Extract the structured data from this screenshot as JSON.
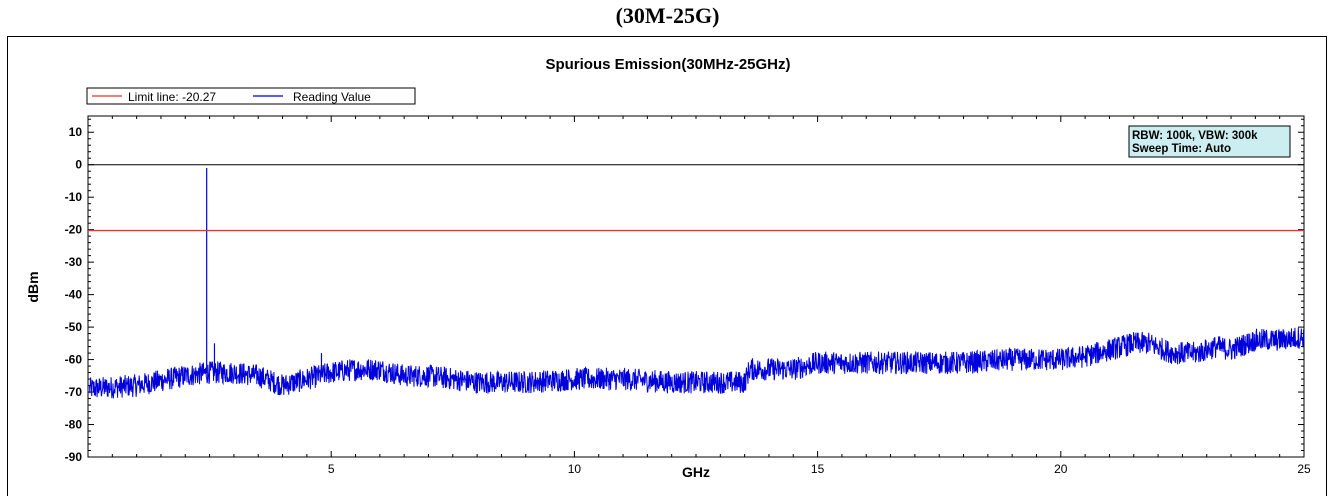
{
  "heading": "(30M-25G)",
  "chart_data": {
    "type": "line",
    "title": "Spurious Emission(30MHz-25GHz)",
    "xlabel": "GHz",
    "ylabel": "dBm",
    "xlim": [
      0.03,
      25
    ],
    "ylim": [
      -90,
      15
    ],
    "x_ticks": [
      5,
      10,
      15,
      20,
      25
    ],
    "y_ticks": [
      10,
      0,
      -10,
      -20,
      -30,
      -40,
      -50,
      -60,
      -70,
      -80,
      -90
    ],
    "reference_line": 0,
    "limit_line": {
      "name": "Limit line: -20.27",
      "value": -20.27,
      "color": "#e8322f"
    },
    "reading": {
      "name": "Reading Value",
      "color": "#0000dd",
      "noise_floor": [
        [
          0.03,
          -69
        ],
        [
          1,
          -68
        ],
        [
          2,
          -65
        ],
        [
          2.5,
          -64
        ],
        [
          3,
          -64
        ],
        [
          3.5,
          -65
        ],
        [
          4,
          -68
        ],
        [
          4.5,
          -66
        ],
        [
          5,
          -64
        ],
        [
          5.5,
          -63
        ],
        [
          6,
          -63
        ],
        [
          6.5,
          -65
        ],
        [
          7,
          -65
        ],
        [
          8,
          -67
        ],
        [
          9,
          -67
        ],
        [
          10,
          -66
        ],
        [
          11,
          -66
        ],
        [
          12,
          -67
        ],
        [
          13,
          -67
        ],
        [
          13.5,
          -67
        ],
        [
          13.6,
          -63
        ],
        [
          14,
          -63
        ],
        [
          14.5,
          -63
        ],
        [
          15,
          -61
        ],
        [
          16,
          -61
        ],
        [
          17,
          -61
        ],
        [
          18,
          -61
        ],
        [
          19,
          -60
        ],
        [
          20,
          -60
        ],
        [
          20.5,
          -59
        ],
        [
          21,
          -57
        ],
        [
          21.5,
          -55
        ],
        [
          21.8,
          -55
        ],
        [
          22.3,
          -58
        ],
        [
          22.8,
          -58
        ],
        [
          23.2,
          -56
        ],
        [
          23.5,
          -57
        ],
        [
          24,
          -54
        ],
        [
          24.5,
          -54
        ],
        [
          25,
          -53
        ]
      ],
      "peaks": [
        [
          2.44,
          -1
        ],
        [
          2.6,
          -55
        ],
        [
          4.8,
          -58
        ]
      ]
    },
    "info_box": [
      "RBW: 100k, VBW: 300k",
      "Sweep Time: Auto"
    ],
    "legend_position": "top-left"
  }
}
